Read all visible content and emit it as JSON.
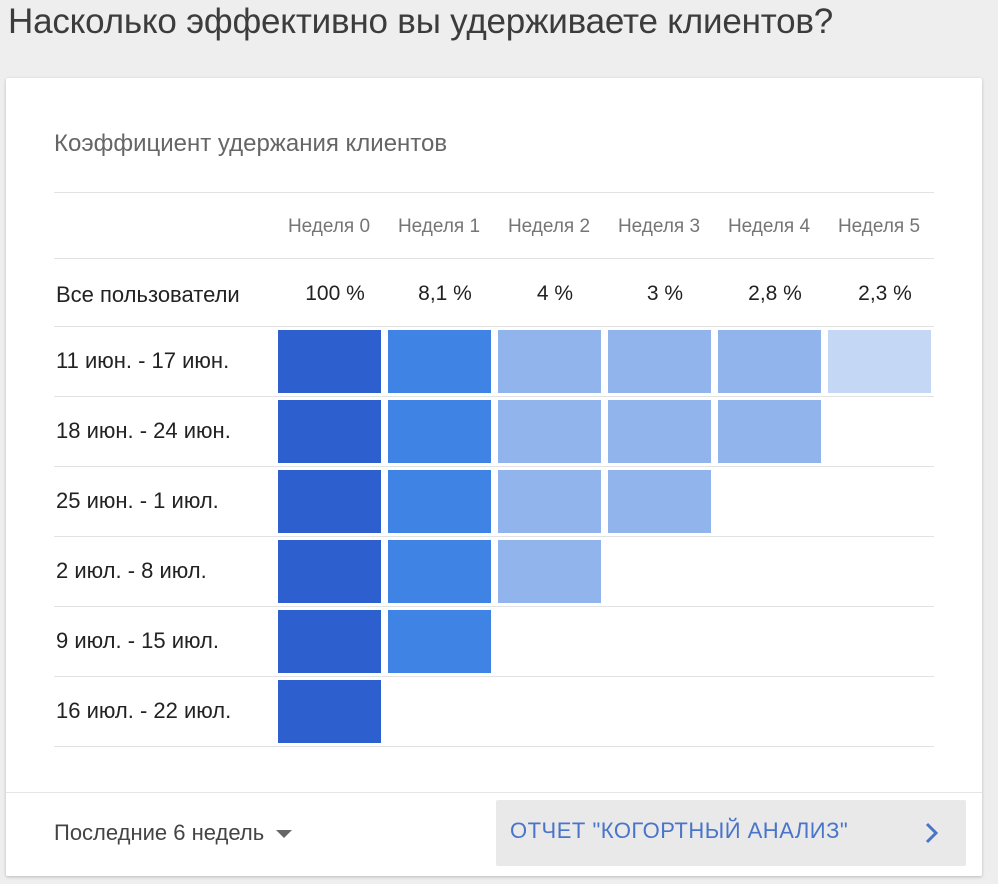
{
  "page": {
    "title": "Насколько эффективно вы удерживаете клиентов?"
  },
  "card": {
    "title": "Коэффициент удержания клиентов",
    "columns": [
      "Неделя 0",
      "Неделя 1",
      "Неделя 2",
      "Неделя 3",
      "Неделя 4",
      "Неделя 5"
    ],
    "all_users": {
      "label": "Все пользователи",
      "values": [
        "100 %",
        "8,1 %",
        "4 %",
        "3 %",
        "2,8 %",
        "2,3 %"
      ]
    },
    "cohorts": [
      {
        "label": "11 июн. - 17 июн.",
        "levels": [
          4,
          3,
          2,
          2,
          2,
          1
        ]
      },
      {
        "label": "18 июн. - 24 июн.",
        "levels": [
          4,
          3,
          2,
          2,
          2
        ]
      },
      {
        "label": "25 июн. - 1 июл.",
        "levels": [
          4,
          3,
          2,
          2
        ]
      },
      {
        "label": "2 июл. - 8 июл.",
        "levels": [
          4,
          3,
          2
        ]
      },
      {
        "label": "9 июл. - 15 июл.",
        "levels": [
          4,
          3
        ]
      },
      {
        "label": "16 июл. - 22 июл.",
        "levels": [
          4
        ]
      }
    ],
    "level_colors": {
      "1": "#c4d7f5",
      "2": "#92b4ec",
      "3": "#3f84e5",
      "4": "#2d5fce"
    }
  },
  "footer": {
    "period": "Последние 6 недель",
    "report_button": "ОТЧЕТ \"КОГОРТНЫЙ АНАЛИЗ\""
  }
}
